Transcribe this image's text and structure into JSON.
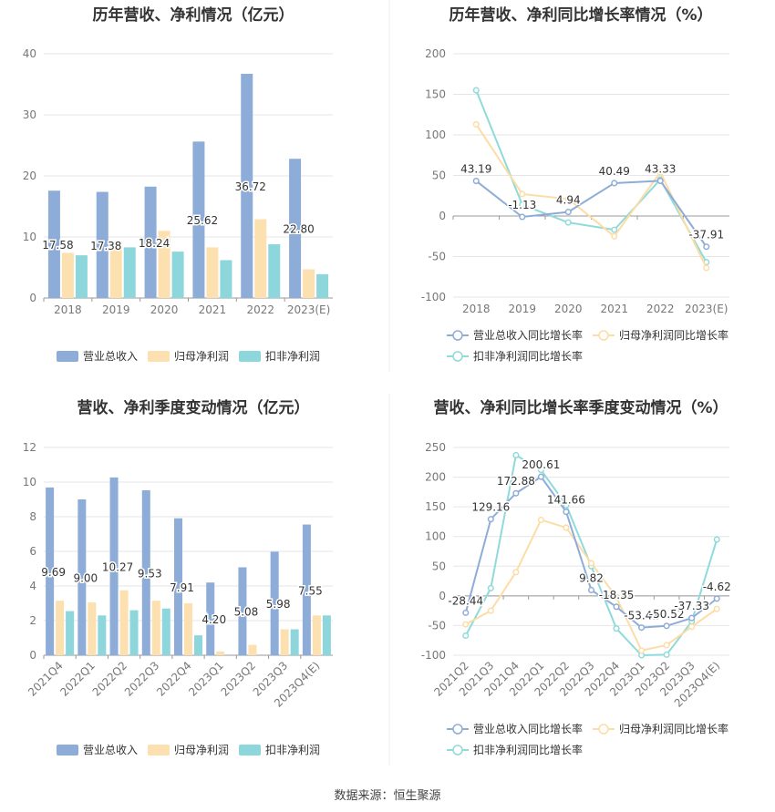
{
  "source": "数据来源：恒生聚源",
  "colors": {
    "revenue": "#8eacd8",
    "parent_profit": "#fde0b0",
    "deducted_profit": "#8dd7dc",
    "revenue_line": "#8eacd8",
    "parent_line": "#fddca5",
    "deducted_line": "#8fdada",
    "grid": "#e6e6e6",
    "axis_text": "#777777",
    "title": "#333333"
  },
  "chart_data": [
    {
      "type": "bar",
      "title": "历年营收、净利情况（亿元）",
      "categories": [
        "2018",
        "2019",
        "2020",
        "2021",
        "2022",
        "2023(E)"
      ],
      "ylim": [
        0,
        40
      ],
      "yticks": [
        "0",
        "10",
        "20",
        "30",
        "40"
      ],
      "grid": true,
      "legend_position": "bottom",
      "series": [
        {
          "name": "营业总收入",
          "values": [
            17.58,
            17.38,
            18.24,
            25.62,
            36.72,
            22.8
          ],
          "labels": [
            "17.58",
            "17.38",
            "18.24",
            "25.62",
            "36.72",
            "22.80"
          ]
        },
        {
          "name": "归母净利润",
          "values": [
            7.4,
            9.3,
            11.0,
            8.3,
            12.9,
            4.7
          ]
        },
        {
          "name": "扣非净利润",
          "values": [
            7.0,
            8.3,
            7.6,
            6.2,
            8.8,
            3.9
          ]
        }
      ]
    },
    {
      "type": "line",
      "title": "历年营收、净利同比增长率情况（%）",
      "categories": [
        "2018",
        "2019",
        "2020",
        "2021",
        "2022",
        "2023(E)"
      ],
      "ylim": [
        -100,
        200
      ],
      "yticks": [
        "-100",
        "-50",
        "0",
        "50",
        "100",
        "150",
        "200"
      ],
      "grid": true,
      "legend_position": "bottom",
      "series": [
        {
          "name": "营业总收入同比增长率",
          "values": [
            43.19,
            -1.13,
            4.94,
            40.49,
            43.33,
            -37.91
          ],
          "labels": [
            "43.19",
            "-1.13",
            "4.94",
            "40.49",
            "43.33",
            "-37.91"
          ]
        },
        {
          "name": "归母净利润同比增长率",
          "values": [
            113,
            27,
            21,
            -25,
            54,
            -64
          ]
        },
        {
          "name": "扣非净利润同比增长率",
          "values": [
            155,
            14,
            -8,
            -17,
            45,
            -57
          ]
        }
      ]
    },
    {
      "type": "bar",
      "title": "营收、净利季度变动情况（亿元）",
      "categories": [
        "2021Q4",
        "2022Q1",
        "2022Q2",
        "2022Q3",
        "2022Q4",
        "2023Q1",
        "2023Q2",
        "2023Q3",
        "2023Q4(E)"
      ],
      "ylim": [
        0,
        12
      ],
      "yticks": [
        "0",
        "2",
        "4",
        "6",
        "8",
        "10",
        "12"
      ],
      "grid": true,
      "legend_position": "bottom",
      "series": [
        {
          "name": "营业总收入",
          "values": [
            9.69,
            9.0,
            10.27,
            9.53,
            7.91,
            4.2,
            5.08,
            5.98,
            7.55
          ],
          "labels": [
            "9.69",
            "9.00",
            "10.27",
            "9.53",
            "7.91",
            "4.20",
            "5.08",
            "5.98",
            "7.55"
          ]
        },
        {
          "name": "归母净利润",
          "values": [
            3.15,
            3.05,
            3.75,
            3.15,
            3.0,
            0.22,
            0.6,
            1.5,
            2.3
          ]
        },
        {
          "name": "扣非净利润",
          "values": [
            2.55,
            2.3,
            2.6,
            2.7,
            1.15,
            0.0,
            0.0,
            1.5,
            2.3
          ]
        }
      ]
    },
    {
      "type": "line",
      "title": "营收、净利同比增长率季度变动情况（%）",
      "categories": [
        "2021Q2",
        "2021Q3",
        "2021Q4",
        "2022Q1",
        "2022Q2",
        "2022Q3",
        "2022Q4",
        "2023Q1",
        "2023Q2",
        "2023Q3",
        "2023Q4(E)"
      ],
      "ylim": [
        -100,
        250
      ],
      "yticks": [
        "-100",
        "-50",
        "0",
        "50",
        "100",
        "150",
        "200",
        "250"
      ],
      "grid": true,
      "legend_position": "bottom",
      "series": [
        {
          "name": "营业总收入同比增长率",
          "values": [
            -28.44,
            129.16,
            172.88,
            200.61,
            141.66,
            9.82,
            -18.35,
            -53.41,
            -50.52,
            -37.33,
            -4.62
          ],
          "labels": [
            "-28.44",
            "129.16",
            "172.88",
            "200.61",
            "141.66",
            "9.82",
            "-18.35",
            "-53.41",
            "-50.52",
            "-37.33",
            "-4.62"
          ]
        },
        {
          "name": "归母净利润同比增长率",
          "values": [
            -48,
            -25,
            40,
            128,
            115,
            55,
            -2,
            -92,
            -83,
            -52,
            -22
          ]
        },
        {
          "name": "扣非净利润同比增长率",
          "values": [
            -67,
            13,
            237,
            212,
            153,
            50,
            -55,
            -100,
            -99,
            -43,
            95
          ]
        }
      ]
    }
  ]
}
